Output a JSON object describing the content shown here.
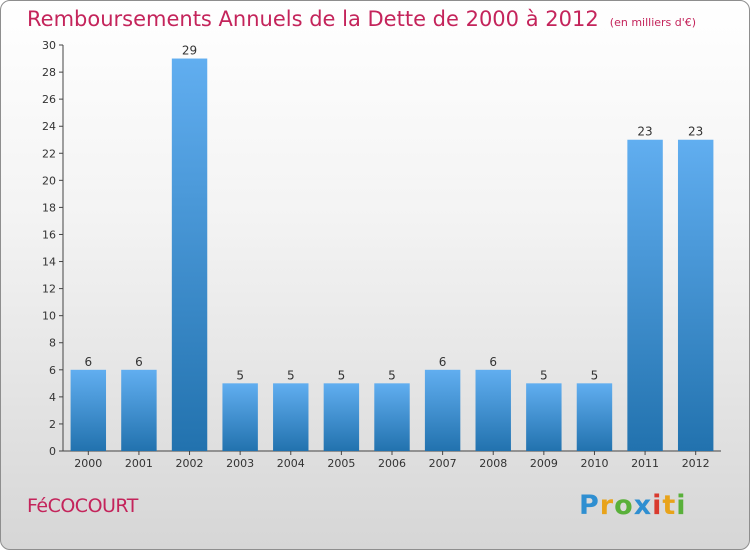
{
  "chart_title": "Remboursements Annuels de la Dette de 2000 à 2012",
  "chart_unit": "(en milliers d'€)",
  "commune_name": "FéCOCOURT",
  "logo_text": "Proxiti",
  "logo_colors": [
    "#2f8fd1",
    "#e8a31a",
    "#59b03a",
    "#2f8fd1",
    "#d93a2e",
    "#e8a31a",
    "#59b03a"
  ],
  "colors": {
    "title": "#c4245b",
    "bar_light": "#61aef0",
    "bar_dark": "#2272ae"
  },
  "chart_data": {
    "type": "bar",
    "title": "Remboursements Annuels de la Dette de 2000 à 2012",
    "xlabel": "",
    "ylabel": "",
    "categories": [
      "2000",
      "2001",
      "2002",
      "2003",
      "2004",
      "2005",
      "2006",
      "2007",
      "2008",
      "2009",
      "2010",
      "2011",
      "2012"
    ],
    "values": [
      6,
      6,
      29,
      5,
      5,
      5,
      5,
      6,
      6,
      5,
      5,
      23,
      23
    ],
    "ylim": [
      0,
      30
    ],
    "yticks": [
      0,
      2,
      4,
      6,
      8,
      10,
      12,
      14,
      16,
      18,
      20,
      22,
      24,
      26,
      28,
      30
    ],
    "grid": false,
    "data_labels": true
  }
}
